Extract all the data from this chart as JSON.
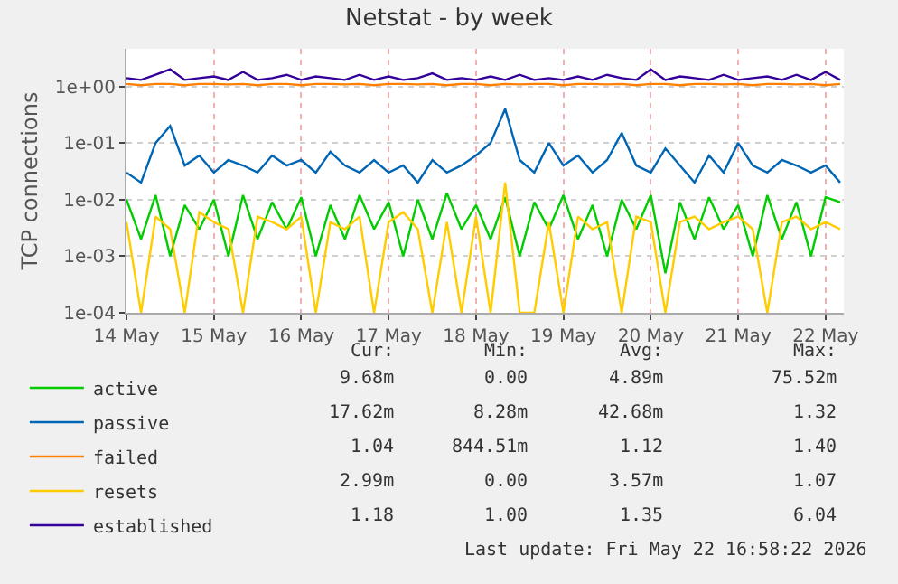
{
  "chart_data": {
    "type": "line",
    "title": "Netstat - by week",
    "ylabel": "TCP connections",
    "x": [
      "2026-05-14T00:00",
      "2026-05-14T04:00",
      "2026-05-14T08:00",
      "2026-05-14T12:00",
      "2026-05-14T16:00",
      "2026-05-14T20:00",
      "2026-05-15T00:00",
      "2026-05-15T04:00",
      "2026-05-15T08:00",
      "2026-05-15T12:00",
      "2026-05-15T16:00",
      "2026-05-15T20:00",
      "2026-05-16T00:00",
      "2026-05-16T04:00",
      "2026-05-16T08:00",
      "2026-05-16T12:00",
      "2026-05-16T16:00",
      "2026-05-16T20:00",
      "2026-05-17T00:00",
      "2026-05-17T04:00",
      "2026-05-17T08:00",
      "2026-05-17T12:00",
      "2026-05-17T16:00",
      "2026-05-17T20:00",
      "2026-05-18T00:00",
      "2026-05-18T04:00",
      "2026-05-18T08:00",
      "2026-05-18T12:00",
      "2026-05-18T16:00",
      "2026-05-18T20:00",
      "2026-05-19T00:00",
      "2026-05-19T04:00",
      "2026-05-19T08:00",
      "2026-05-19T12:00",
      "2026-05-19T16:00",
      "2026-05-19T20:00",
      "2026-05-20T00:00",
      "2026-05-20T04:00",
      "2026-05-20T08:00",
      "2026-05-20T12:00",
      "2026-05-20T16:00",
      "2026-05-20T20:00",
      "2026-05-21T00:00",
      "2026-05-21T04:00",
      "2026-05-21T08:00",
      "2026-05-21T12:00",
      "2026-05-21T16:00",
      "2026-05-21T20:00",
      "2026-05-22T00:00",
      "2026-05-22T04:00"
    ],
    "series": [
      {
        "name": "active",
        "color": "#00cc00",
        "values": [
          0.01,
          0.002,
          0.012,
          0.001,
          0.008,
          0.003,
          0.01,
          0.001,
          0.012,
          0.002,
          0.009,
          0.003,
          0.011,
          0.001,
          0.008,
          0.002,
          0.012,
          0.003,
          0.009,
          0.001,
          0.01,
          0.002,
          0.013,
          0.003,
          0.008,
          0.002,
          0.011,
          0.001,
          0.009,
          0.003,
          0.012,
          0.002,
          0.008,
          0.001,
          0.01,
          0.003,
          0.012,
          0.0005,
          0.009,
          0.002,
          0.011,
          0.003,
          0.008,
          0.001,
          0.012,
          0.002,
          0.009,
          0.001,
          0.011,
          0.009
        ]
      },
      {
        "name": "passive",
        "color": "#0066b3",
        "values": [
          0.03,
          0.02,
          0.1,
          0.2,
          0.04,
          0.06,
          0.03,
          0.05,
          0.04,
          0.03,
          0.06,
          0.04,
          0.05,
          0.03,
          0.07,
          0.04,
          0.03,
          0.05,
          0.03,
          0.04,
          0.02,
          0.05,
          0.03,
          0.04,
          0.06,
          0.1,
          0.4,
          0.05,
          0.03,
          0.1,
          0.04,
          0.06,
          0.03,
          0.05,
          0.15,
          0.04,
          0.03,
          0.08,
          0.04,
          0.02,
          0.06,
          0.03,
          0.1,
          0.04,
          0.03,
          0.05,
          0.04,
          0.03,
          0.04,
          0.02
        ]
      },
      {
        "name": "failed",
        "color": "#ff8000",
        "values": [
          1.1,
          1.05,
          1.1,
          1.1,
          1.05,
          1.1,
          1.1,
          1.08,
          1.1,
          1.05,
          1.1,
          1.1,
          1.05,
          1.1,
          1.1,
          1.08,
          1.1,
          1.05,
          1.1,
          1.1,
          1.08,
          1.1,
          1.05,
          1.1,
          1.1,
          1.05,
          1.1,
          1.08,
          1.1,
          1.1,
          1.05,
          1.1,
          1.1,
          1.08,
          1.1,
          1.05,
          1.1,
          1.1,
          1.05,
          1.1,
          1.1,
          1.08,
          1.1,
          1.05,
          1.1,
          1.1,
          1.08,
          1.1,
          1.05,
          1.1
        ]
      },
      {
        "name": "resets",
        "color": "#ffcc00",
        "values": [
          0.004,
          0.0001,
          0.005,
          0.003,
          0.0001,
          0.006,
          0.004,
          0.003,
          0.0001,
          0.005,
          0.004,
          0.003,
          0.005,
          0.0001,
          0.004,
          0.003,
          0.005,
          0.0001,
          0.004,
          0.006,
          0.003,
          0.0001,
          0.004,
          0.0001,
          0.005,
          0.0001,
          0.02,
          0.0001,
          0.0001,
          0.004,
          0.0001,
          0.005,
          0.003,
          0.004,
          0.0001,
          0.005,
          0.004,
          0.0001,
          0.004,
          0.005,
          0.003,
          0.004,
          0.005,
          0.003,
          0.0001,
          0.004,
          0.005,
          0.003,
          0.004,
          0.003
        ]
      },
      {
        "name": "established",
        "color": "#330099",
        "values": [
          1.4,
          1.3,
          1.6,
          2.0,
          1.3,
          1.4,
          1.5,
          1.3,
          1.8,
          1.3,
          1.4,
          1.6,
          1.3,
          1.5,
          1.4,
          1.3,
          1.6,
          1.3,
          1.5,
          1.3,
          1.4,
          1.7,
          1.3,
          1.4,
          1.3,
          1.5,
          1.3,
          1.6,
          1.3,
          1.4,
          1.3,
          1.5,
          1.3,
          1.6,
          1.4,
          1.3,
          2.0,
          1.3,
          1.5,
          1.4,
          1.3,
          1.6,
          1.3,
          1.4,
          1.5,
          1.3,
          1.6,
          1.3,
          1.8,
          1.3
        ]
      }
    ],
    "log": "y",
    "ylim": [
      0.0001,
      4.6
    ],
    "yticks": [
      {
        "value": 0.0001,
        "label": "1e-04"
      },
      {
        "value": 0.001,
        "label": "1e-03"
      },
      {
        "value": 0.01,
        "label": "1e-02"
      },
      {
        "value": 0.1,
        "label": "1e-01"
      },
      {
        "value": 1,
        "label": "1e+00"
      }
    ],
    "xlim": [
      "2026-05-14T00:00",
      "2026-05-22T05:00"
    ],
    "xticks": [
      {
        "value": "2026-05-14",
        "label": "14 May"
      },
      {
        "value": "2026-05-15",
        "label": "15 May"
      },
      {
        "value": "2026-05-16",
        "label": "16 May"
      },
      {
        "value": "2026-05-17",
        "label": "17 May"
      },
      {
        "value": "2026-05-18",
        "label": "18 May"
      },
      {
        "value": "2026-05-19",
        "label": "19 May"
      },
      {
        "value": "2026-05-20",
        "label": "20 May"
      },
      {
        "value": "2026-05-21",
        "label": "21 May"
      },
      {
        "value": "2026-05-22",
        "label": "22 May"
      }
    ],
    "grid": true,
    "legend": "bottom left",
    "marker": "none",
    "line_style": "solid",
    "annotations": [
      "Cur:",
      "Min:",
      "Avg:",
      "Max:",
      "9.68m",
      "0.00",
      "4.89m",
      "75.52m",
      "17.62m",
      "8.28m",
      "42.68m",
      "1.32",
      "1.04",
      "844.51m",
      "1.12",
      "1.40",
      "2.99m",
      "0.00",
      "3.57m",
      "1.07",
      "1.18",
      "1.00",
      "1.35",
      "6.04",
      "Last update: Fri May 22 16:58:22 2026"
    ]
  }
}
